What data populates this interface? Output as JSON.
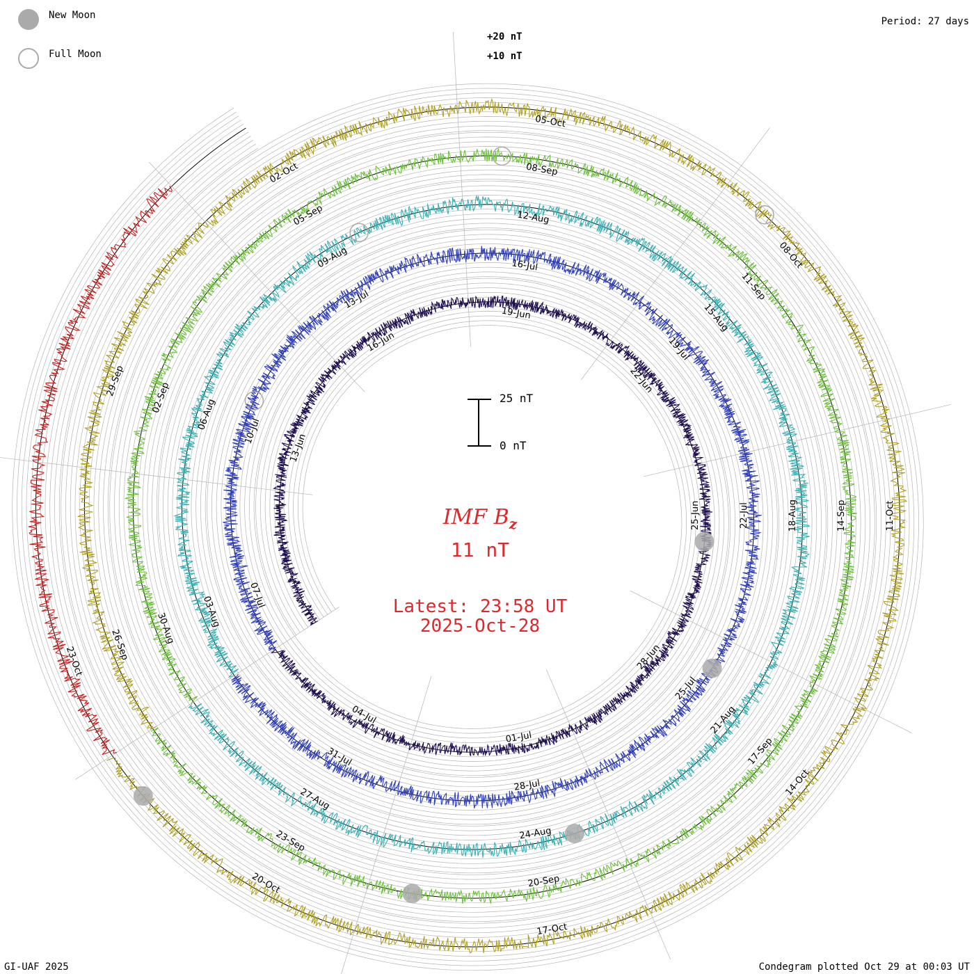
{
  "legend": {
    "new_moon": "New Moon",
    "full_moon": "Full Moon"
  },
  "period_label": "Period: 27 days",
  "credit": "GI-UAF 2025",
  "plotted_label": "Condegram plotted Oct 29 at 00:03 UT",
  "center": {
    "parameter": "IMF B",
    "parameter_subscript": "z",
    "current_value": "11 nT",
    "latest_time": "Latest: 23:58 UT",
    "latest_date": "2025-Oct-28"
  },
  "scale_bar": {
    "top_label": "25 nT",
    "bottom_label": "0 nT"
  },
  "ring_top_labels": [
    "+20 nT",
    "+10 nT"
  ],
  "colors": {
    "center_text": "#e0282c",
    "grid": "#b4b4b4",
    "zero_line": "#000000",
    "moon_fill": "#aaaaaa"
  },
  "chart_data": {
    "type": "line",
    "subtype": "polar condegram (spiral time series)",
    "period_days": 27,
    "x_start": "2025-06-09",
    "x_end": "2025-10-28",
    "y_unit": "nT",
    "ylim": [
      -25,
      25
    ],
    "grid": true,
    "date_labels": [
      "13-Jun",
      "16-Jun",
      "19-Jun",
      "22-Jun",
      "25-Jun",
      "28-Jun",
      "01-Jul",
      "04-Jul",
      "07-Jul",
      "10-Jul",
      "13-Jul",
      "16-Jul",
      "19-Jul",
      "22-Jul",
      "25-Jul",
      "28-Jul",
      "31-Jul",
      "03-Aug",
      "06-Aug",
      "09-Aug",
      "12-Aug",
      "15-Aug",
      "18-Aug",
      "21-Aug",
      "24-Aug",
      "27-Aug",
      "30-Aug",
      "02-Sep",
      "05-Sep",
      "08-Sep",
      "11-Sep",
      "14-Sep",
      "17-Sep",
      "20-Sep",
      "23-Sep",
      "26-Sep",
      "29-Sep",
      "02-Oct",
      "05-Oct",
      "08-Oct",
      "11-Oct",
      "14-Oct",
      "17-Oct",
      "20-Oct",
      "23-Oct"
    ],
    "series": [
      {
        "start": "2025-06-09",
        "end": "2025-07-06",
        "color": "#1e0c50",
        "amplitude": 8
      },
      {
        "start": "2025-07-06",
        "end": "2025-08-02",
        "color": "#2f3fbd",
        "amplitude": 10
      },
      {
        "start": "2025-08-02",
        "end": "2025-08-29",
        "color": "#38b0b4",
        "amplitude": 10
      },
      {
        "start": "2025-08-29",
        "end": "2025-09-25",
        "color": "#6cc03a",
        "amplitude": 9
      },
      {
        "start": "2025-09-25",
        "end": "2025-10-22",
        "color": "#b0a020",
        "amplitude": 10
      },
      {
        "start": "2025-10-22",
        "end": "2025-10-28",
        "color": "#c81e1e",
        "amplitude": 10
      }
    ],
    "new_moons": [
      "2025-06-25",
      "2025-07-24",
      "2025-08-23",
      "2025-09-21",
      "2025-10-21"
    ],
    "full_moons": [
      "2025-07-10",
      "2025-08-09",
      "2025-09-07",
      "2025-10-07"
    ]
  }
}
